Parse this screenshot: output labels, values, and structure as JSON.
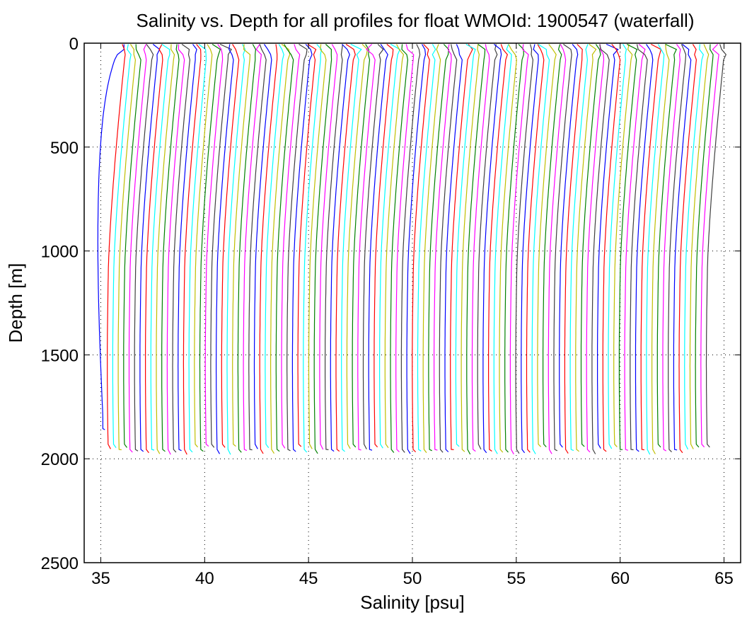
{
  "chart_data": {
    "type": "line",
    "title": "Salinity vs. Depth for all profiles for float WMOId: 1900547 (waterfall)",
    "xlabel": "Salinity [psu]",
    "ylabel": "Depth [m]",
    "xlim": [
      34.2,
      65.8
    ],
    "ylim": [
      0,
      2500
    ],
    "y_reversed": true,
    "grid": "dotted",
    "xticks": [
      35,
      40,
      45,
      50,
      55,
      60,
      65
    ],
    "yticks": [
      0,
      500,
      1000,
      1500,
      2000,
      2500
    ],
    "series_colors": [
      "#0000ff",
      "#ff0000",
      "#00ffff",
      "#bfbf00",
      "#008000",
      "#ff00ff",
      "#404040"
    ],
    "profiles": {
      "count": 112,
      "surface_salinity_first": 36.1,
      "surface_salinity_last": 65.6,
      "deep_salinity_first": 35.1,
      "deep_salinity_last": 64.2,
      "first_profile_max_depth": 1860,
      "typical_max_depth": 1980
    }
  }
}
